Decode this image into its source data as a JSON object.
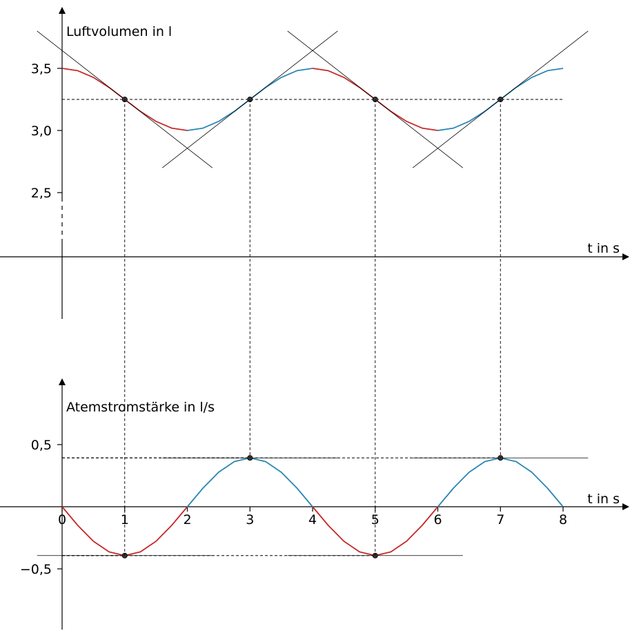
{
  "chart_data": [
    {
      "type": "line",
      "title": "",
      "ylabel": "Luftvolumen in l",
      "xlabel": "t in s",
      "xlim": [
        0,
        8
      ],
      "ylim": [
        2.5,
        3.5
      ],
      "x_ticks": [],
      "y_ticks": [
        {
          "value": 3.5,
          "label": "3,5"
        },
        {
          "value": 3.0,
          "label": "3,0"
        },
        {
          "value": 2.5,
          "label": "2,5"
        }
      ],
      "series": [
        {
          "x": [
            0,
            0.25,
            0.5,
            0.75,
            1,
            1.25,
            1.5,
            1.75,
            2,
            2.25,
            2.5,
            2.75,
            3,
            3.25,
            3.5,
            3.75,
            4,
            4.25,
            4.5,
            4.75,
            5,
            5.25,
            5.5,
            5.75,
            6,
            6.25,
            6.5,
            6.75,
            7,
            7.25,
            7.5,
            7.75,
            8
          ],
          "values": [
            3.5,
            3.481,
            3.427,
            3.346,
            3.25,
            3.154,
            3.073,
            3.019,
            3.0,
            3.019,
            3.073,
            3.154,
            3.25,
            3.346,
            3.427,
            3.481,
            3.5,
            3.481,
            3.427,
            3.346,
            3.25,
            3.154,
            3.073,
            3.019,
            3.0,
            3.019,
            3.073,
            3.154,
            3.25,
            3.346,
            3.427,
            3.481,
            3.5
          ]
        }
      ],
      "segment_colors": [
        {
          "from": 0,
          "to": 2,
          "color": "#c62828"
        },
        {
          "from": 2,
          "to": 4,
          "color": "#2a86b4"
        },
        {
          "from": 4,
          "to": 6,
          "color": "#c62828"
        },
        {
          "from": 6,
          "to": 8,
          "color": "#2a86b4"
        }
      ],
      "marked_points": [
        {
          "x": 1,
          "y": 3.25,
          "slope": -0.393
        },
        {
          "x": 3,
          "y": 3.25,
          "slope": 0.393
        },
        {
          "x": 5,
          "y": 3.25,
          "slope": -0.393
        },
        {
          "x": 7,
          "y": 3.25,
          "slope": 0.393
        }
      ],
      "dashed_reference_y": 3.25,
      "grid": false
    },
    {
      "type": "line",
      "title": "",
      "ylabel": "Atemstromstärke in l/s",
      "xlabel": "t in s",
      "xlim": [
        0,
        8
      ],
      "ylim": [
        -0.5,
        0.5
      ],
      "x_ticks": [
        {
          "value": 0,
          "label": "0"
        },
        {
          "value": 1,
          "label": "1"
        },
        {
          "value": 2,
          "label": "2"
        },
        {
          "value": 3,
          "label": "3"
        },
        {
          "value": 4,
          "label": "4"
        },
        {
          "value": 5,
          "label": "5"
        },
        {
          "value": 6,
          "label": "6"
        },
        {
          "value": 7,
          "label": "7"
        },
        {
          "value": 8,
          "label": "8"
        }
      ],
      "y_ticks": [
        {
          "value": 0.5,
          "label": "0,5"
        },
        {
          "value": -0.5,
          "label": "−0,5"
        }
      ],
      "series": [
        {
          "x": [
            0,
            0.25,
            0.5,
            0.75,
            1,
            1.25,
            1.5,
            1.75,
            2,
            2.25,
            2.5,
            2.75,
            3,
            3.25,
            3.5,
            3.75,
            4,
            4.25,
            4.5,
            4.75,
            5,
            5.25,
            5.5,
            5.75,
            6,
            6.25,
            6.5,
            6.75,
            7,
            7.25,
            7.5,
            7.75,
            8
          ],
          "values": [
            0,
            -0.15,
            -0.278,
            -0.363,
            -0.393,
            -0.363,
            -0.278,
            -0.15,
            0,
            0.15,
            0.278,
            0.363,
            0.393,
            0.363,
            0.278,
            0.15,
            0,
            -0.15,
            -0.278,
            -0.363,
            -0.393,
            -0.363,
            -0.278,
            -0.15,
            0,
            0.15,
            0.278,
            0.363,
            0.393,
            0.363,
            0.278,
            0.15,
            0
          ]
        }
      ],
      "segment_colors": [
        {
          "from": 0,
          "to": 2,
          "color": "#c62828"
        },
        {
          "from": 2,
          "to": 4,
          "color": "#2a86b4"
        },
        {
          "from": 4,
          "to": 6,
          "color": "#c62828"
        },
        {
          "from": 6,
          "to": 8,
          "color": "#2a86b4"
        }
      ],
      "marked_points": [
        {
          "x": 1,
          "y": -0.393,
          "slope": 0
        },
        {
          "x": 3,
          "y": 0.393,
          "slope": 0
        },
        {
          "x": 5,
          "y": -0.393,
          "slope": 0
        },
        {
          "x": 7,
          "y": 0.393,
          "slope": 0
        }
      ],
      "grid": false
    }
  ]
}
